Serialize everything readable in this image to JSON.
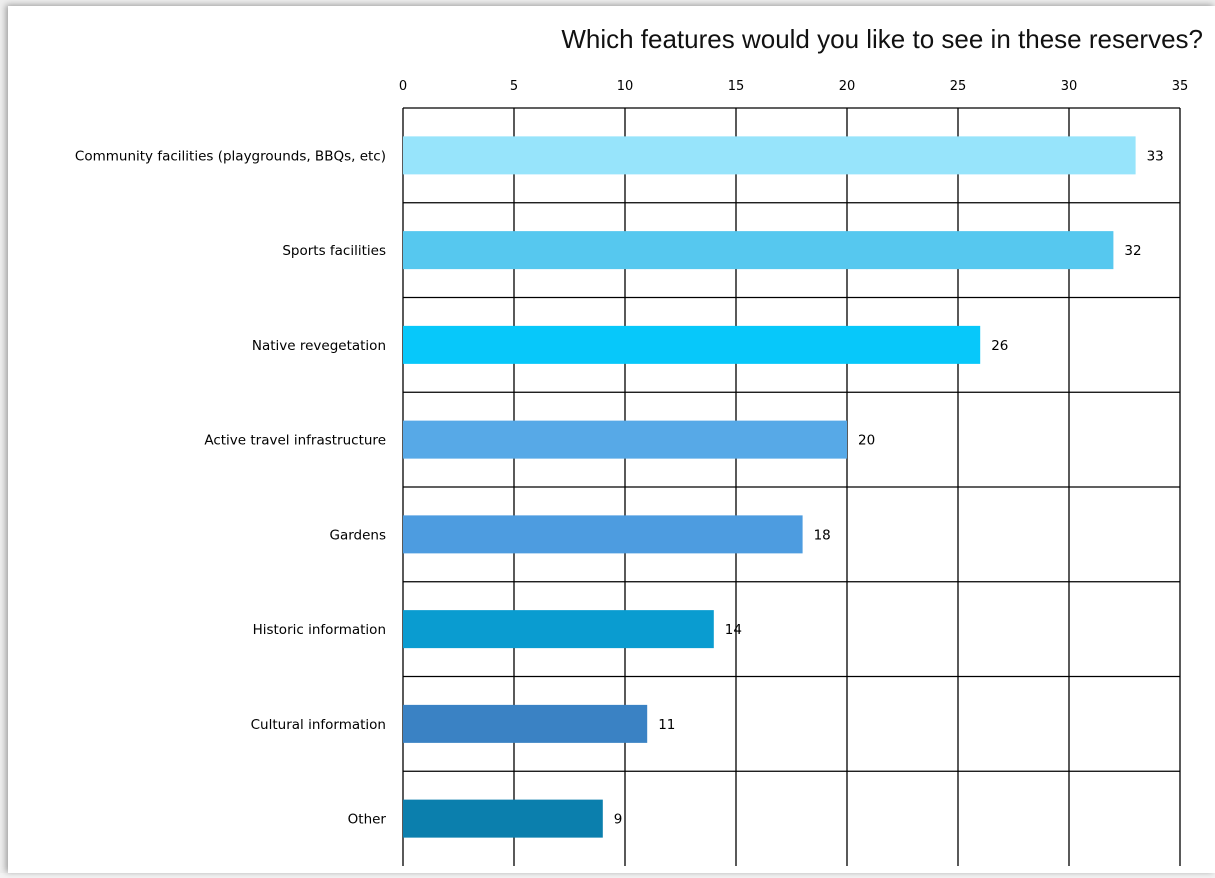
{
  "chart_data": {
    "type": "bar",
    "orientation": "horizontal",
    "title": "Which features would you like to see in these reserves?",
    "xlabel": "",
    "ylabel": "",
    "xlim": [
      0,
      35
    ],
    "x_ticks": [
      "0",
      "5",
      "10",
      "15",
      "20",
      "25",
      "30",
      "35"
    ],
    "x_axis_position": "top",
    "grid": true,
    "categories": [
      "Community facilities (playgrounds, BBQs, etc)",
      "Sports facilities",
      "Native revegetation",
      "Active travel infrastructure",
      "Gardens",
      "Historic information",
      "Cultural information",
      "Other"
    ],
    "values": [
      33,
      32,
      26,
      20,
      18,
      14,
      11,
      9
    ],
    "data_labels": [
      "33",
      "32",
      "26",
      "20",
      "18",
      "14",
      "11",
      "9"
    ],
    "colors": [
      "#97e4fb",
      "#56c8ef",
      "#07c8fa",
      "#57a9e7",
      "#4d9ce0",
      "#0a9cd0",
      "#3a82c4",
      "#0b7fad"
    ]
  }
}
